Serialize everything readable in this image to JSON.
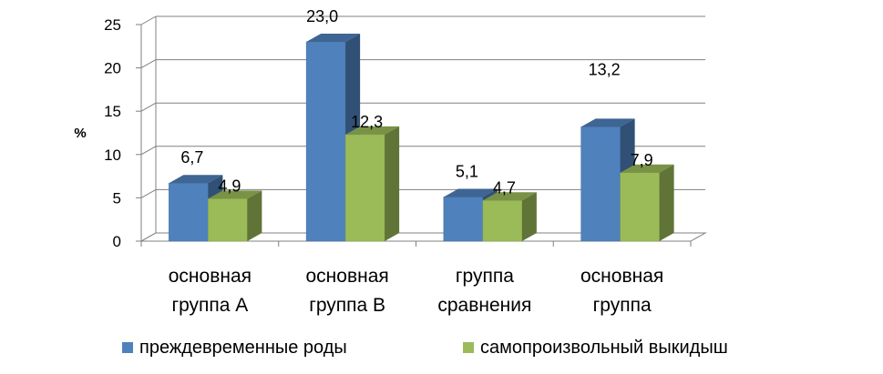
{
  "chart_data": {
    "type": "bar",
    "title": "",
    "xlabel": "",
    "ylabel": "%",
    "ylim": [
      0,
      25
    ],
    "yticks": [
      0,
      5,
      10,
      15,
      20,
      25
    ],
    "categories": [
      [
        "основная",
        "группа А"
      ],
      [
        "основная",
        "группа В"
      ],
      [
        "группа",
        "сравнения"
      ],
      [
        "основная",
        "группа"
      ]
    ],
    "series": [
      {
        "name": "преждевременные роды",
        "color": "#4F81BD",
        "values": [
          6.7,
          23.0,
          5.1,
          13.2
        ],
        "labels": [
          "6,7",
          "23,0",
          "5,1",
          "13,2"
        ]
      },
      {
        "name": "самопроизвольный выкидыш",
        "color": "#9BBB59",
        "values": [
          4.9,
          12.3,
          4.7,
          7.9
        ],
        "labels": [
          "4,9",
          "12,3",
          "4,7",
          "7,9"
        ]
      }
    ],
    "grid": true,
    "legend_position": "bottom",
    "style": "3d-clustered-column"
  }
}
